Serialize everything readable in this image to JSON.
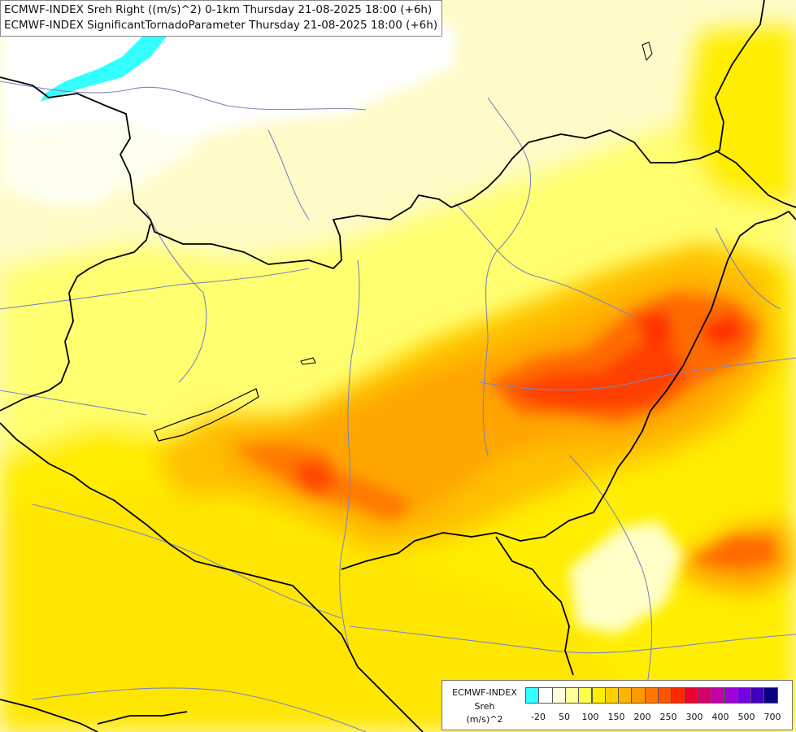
{
  "title": {
    "line1": "ECMWF-INDEX Sreh Right ((m/s)^2) 0-1km Thursday 21-08-2025 18:00 (+6h)",
    "line2": "ECMWF-INDEX SignificantTornadoParameter Thursday 21-08-2025 18:00 (+6h)"
  },
  "legend": {
    "title_line1": "ECMWF-INDEX",
    "title_line2": "Sreh",
    "title_line3": "(m/s)^2",
    "colors": [
      "#33ffff",
      "#ffffff",
      "#ffffe0",
      "#ffff99",
      "#ffff4d",
      "#ffee00",
      "#ffd000",
      "#ffb400",
      "#ff9900",
      "#ff7700",
      "#ff5500",
      "#ff2a00",
      "#ee0033",
      "#d6006b",
      "#c400a8",
      "#a000d9",
      "#7400e6",
      "#4000c0",
      "#0a0080"
    ],
    "labels": [
      "-20",
      "50",
      "100",
      "150",
      "200",
      "250",
      "300",
      "400",
      "500",
      "700"
    ]
  },
  "map": {
    "colors": {
      "background": "#fffde0",
      "white": "#ffffff",
      "cyan": "#33ffff",
      "pale": "#ffffb3",
      "light_yellow": "#ffff66",
      "yellow": "#ffee00",
      "gold": "#ffd000",
      "orange_light": "#ffb400",
      "orange": "#ff9900",
      "dark_orange": "#ff7700",
      "red_orange": "#ff5000",
      "red": "#ff2a00",
      "border": "#000000",
      "river": "#7a86c0"
    }
  }
}
